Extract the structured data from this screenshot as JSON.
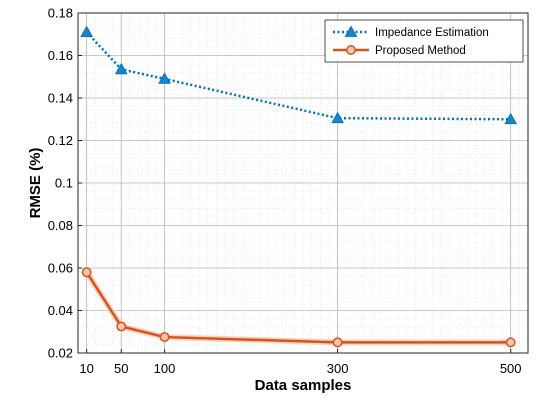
{
  "chart_data": {
    "type": "line",
    "title": "",
    "xlabel": "Data samples",
    "ylabel": "RMSE (%)",
    "xlim": [
      0,
      520
    ],
    "ylim": [
      0.02,
      0.18
    ],
    "x_ticks": [
      10,
      50,
      100,
      300,
      500
    ],
    "x_tick_labels": [
      "10",
      "50",
      "100",
      "300",
      "500"
    ],
    "y_ticks": [
      0.02,
      0.04,
      0.06,
      0.08,
      0.1,
      0.12,
      0.14,
      0.16,
      0.18
    ],
    "y_tick_labels": [
      "0.02",
      "0.04",
      "0.06",
      "0.08",
      "0.1",
      "0.12",
      "0.14",
      "0.16",
      "0.18"
    ],
    "grid": true,
    "minor_grid": true,
    "legend_position": "top-right",
    "series": [
      {
        "name": "Impedance Estimation",
        "x": [
          10,
          50,
          100,
          300,
          500
        ],
        "values": [
          0.171,
          0.1535,
          0.149,
          0.1305,
          0.13
        ],
        "color": "#0072bd",
        "line_style": "dotted",
        "marker": "triangle"
      },
      {
        "name": "Proposed Method",
        "x": [
          10,
          50,
          100,
          300,
          500
        ],
        "values": [
          0.058,
          0.0325,
          0.0275,
          0.025,
          0.025
        ],
        "color": "#d95319",
        "line_style": "solid",
        "marker": "circle"
      }
    ]
  }
}
